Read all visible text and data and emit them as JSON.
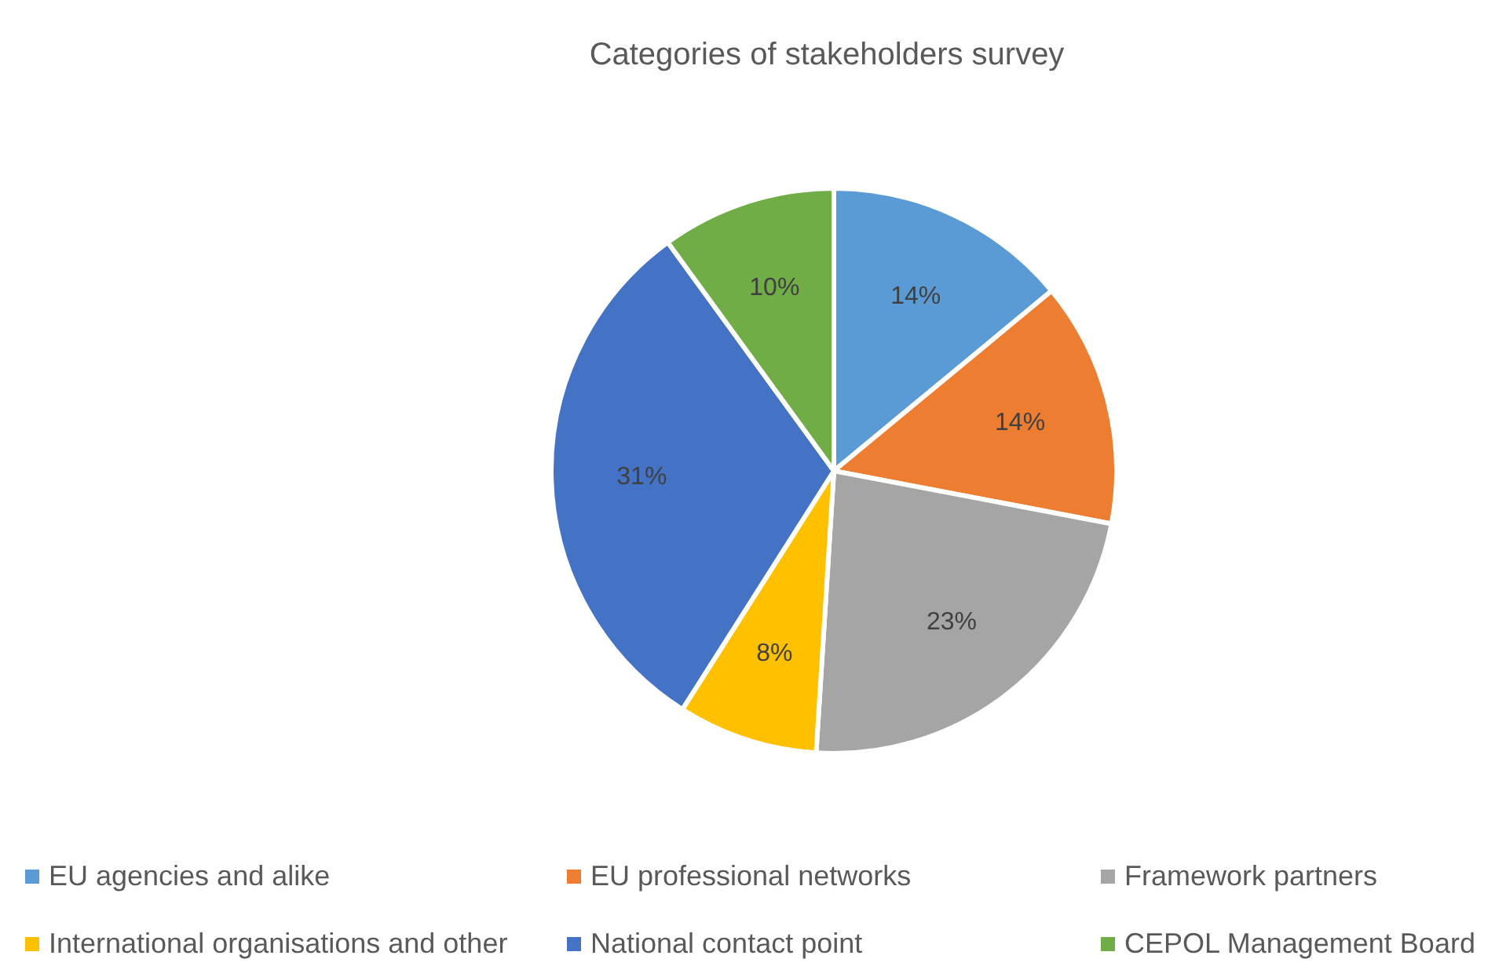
{
  "chart_data": {
    "type": "pie",
    "title": "Categories of stakeholders survey",
    "categories": [
      "EU agencies and alike",
      "EU professional networks",
      "Framework partners",
      "International organisations and other",
      "National contact point",
      "CEPOL Management Board"
    ],
    "values": [
      14,
      14,
      23,
      8,
      31,
      10
    ],
    "colors": [
      "#5b9bd5",
      "#ed7d31",
      "#a5a5a5",
      "#ffc000",
      "#4472c4",
      "#70ad47"
    ],
    "value_labels": [
      "14%",
      "14%",
      "23%",
      "8%",
      "31%",
      "10%"
    ],
    "legend": "bottom"
  }
}
